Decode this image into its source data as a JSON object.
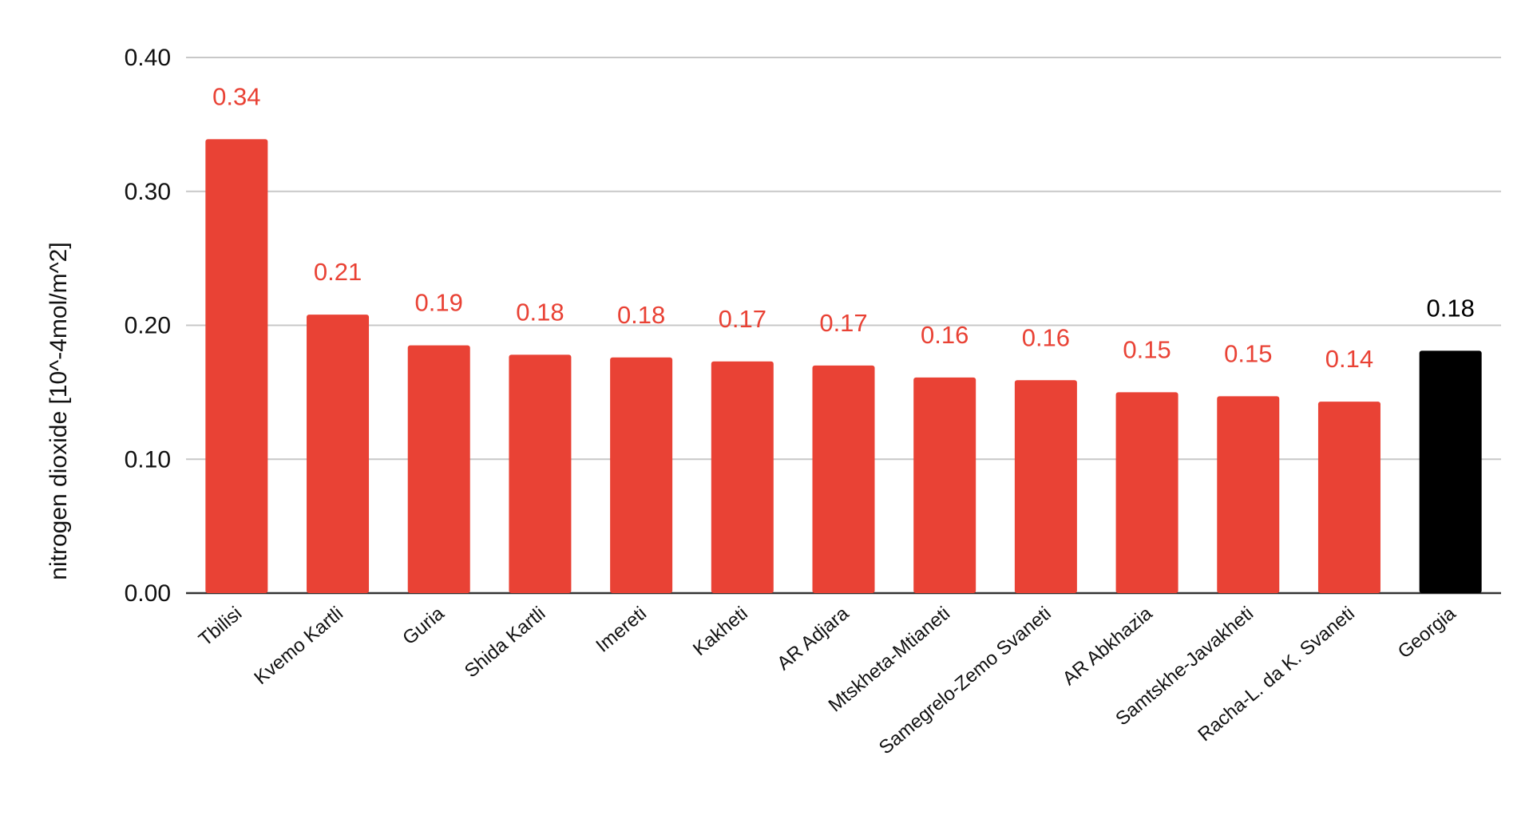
{
  "chart_data": {
    "type": "bar",
    "categories": [
      "Tbilisi",
      "Kvemo Kartli",
      "Guria",
      "Shida Kartli",
      "Imereti",
      "Kakheti",
      "AR Adjara",
      "Mtskheta-Mtianeti",
      "Samegrelo-Zemo Svaneti",
      "AR Abkhazia",
      "Samtskhe-Javakheti",
      "Racha-L. da K. Svaneti",
      "Georgia"
    ],
    "values": [
      0.339,
      0.208,
      0.185,
      0.178,
      0.176,
      0.173,
      0.17,
      0.161,
      0.159,
      0.15,
      0.147,
      0.143,
      0.181
    ],
    "data_labels": [
      "0.34",
      "0.21",
      "0.19",
      "0.18",
      "0.18",
      "0.17",
      "0.17",
      "0.16",
      "0.16",
      "0.15",
      "0.15",
      "0.14",
      "0.18"
    ],
    "bar_colors": [
      "#e94235",
      "#e94235",
      "#e94235",
      "#e94235",
      "#e94235",
      "#e94235",
      "#e94235",
      "#e94235",
      "#e94235",
      "#e94235",
      "#e94235",
      "#e94235",
      "#000000"
    ],
    "label_colors": [
      "#e94235",
      "#e94235",
      "#e94235",
      "#e94235",
      "#e94235",
      "#e94235",
      "#e94235",
      "#e94235",
      "#e94235",
      "#e94235",
      "#e94235",
      "#e94235",
      "#000000"
    ],
    "title": "",
    "xlabel": "",
    "ylabel": "nitrogen dioxide [10^-4mol/m^2]",
    "ylim": [
      0,
      0.4
    ],
    "yticks": [
      0,
      0.1,
      0.2,
      0.3,
      0.4
    ],
    "ytick_labels": [
      "0.00",
      "0.10",
      "0.20",
      "0.30",
      "0.40"
    ],
    "grid": true,
    "legend": "none"
  },
  "colors": {
    "accent": "#e94235",
    "highlight": "#000000",
    "grid": "#c8c8c8",
    "axis": "#333333"
  }
}
